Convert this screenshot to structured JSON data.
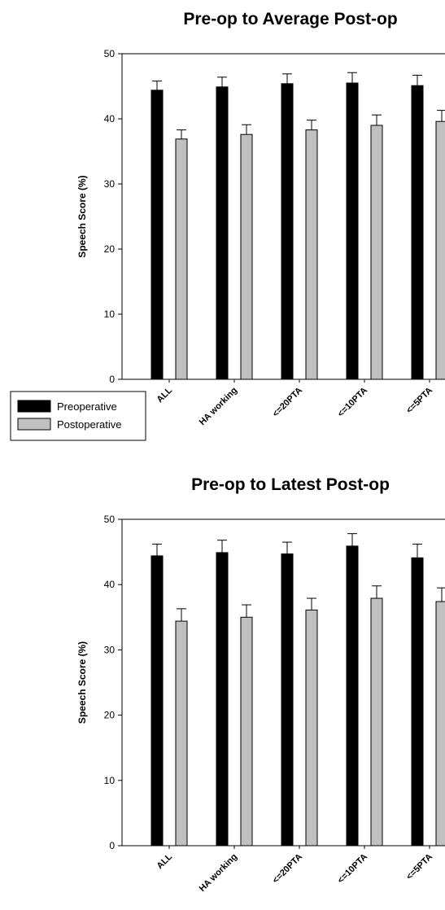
{
  "chart_data": [
    {
      "type": "bar",
      "title": "Pre-op to Average Post-op",
      "ylabel": "Speech Score (%)",
      "xlabel": "",
      "ylim": [
        0,
        50
      ],
      "yticks": [
        0,
        10,
        20,
        30,
        40,
        50
      ],
      "categories": [
        "ALL",
        "HA working",
        "<=20PTA",
        "<=10PTA",
        "<=5PTA"
      ],
      "series": [
        {
          "name": "Preoperative",
          "color": "#000000",
          "values": [
            44.4,
            44.9,
            45.4,
            45.5,
            45.1
          ],
          "error": [
            1.4,
            1.5,
            1.5,
            1.6,
            1.6
          ]
        },
        {
          "name": "Postoperative",
          "color": "#c0c0c0",
          "values": [
            36.9,
            37.6,
            38.3,
            39.0,
            39.6
          ],
          "error": [
            1.4,
            1.5,
            1.5,
            1.6,
            1.7
          ]
        }
      ],
      "legend": {
        "position": "bottom-left",
        "entries": [
          "Preoperative",
          "Postoperative"
        ]
      },
      "grid": false
    },
    {
      "type": "bar",
      "title": "Pre-op to Latest Post-op",
      "ylabel": "Speech Score (%)",
      "xlabel": "",
      "ylim": [
        0,
        50
      ],
      "yticks": [
        0,
        10,
        20,
        30,
        40,
        50
      ],
      "categories": [
        "ALL",
        "HA working",
        "<=20PTA",
        "<=10PTA",
        "<=5PTA"
      ],
      "series": [
        {
          "name": "Preoperative",
          "color": "#000000",
          "values": [
            44.4,
            44.9,
            44.7,
            45.9,
            44.1
          ],
          "error": [
            1.8,
            1.9,
            1.8,
            1.9,
            2.1
          ]
        },
        {
          "name": "Postoperative",
          "color": "#c0c0c0",
          "values": [
            34.4,
            35.0,
            36.1,
            37.9,
            37.4
          ],
          "error": [
            1.9,
            1.9,
            1.8,
            1.9,
            2.1
          ]
        }
      ],
      "grid": false
    }
  ]
}
